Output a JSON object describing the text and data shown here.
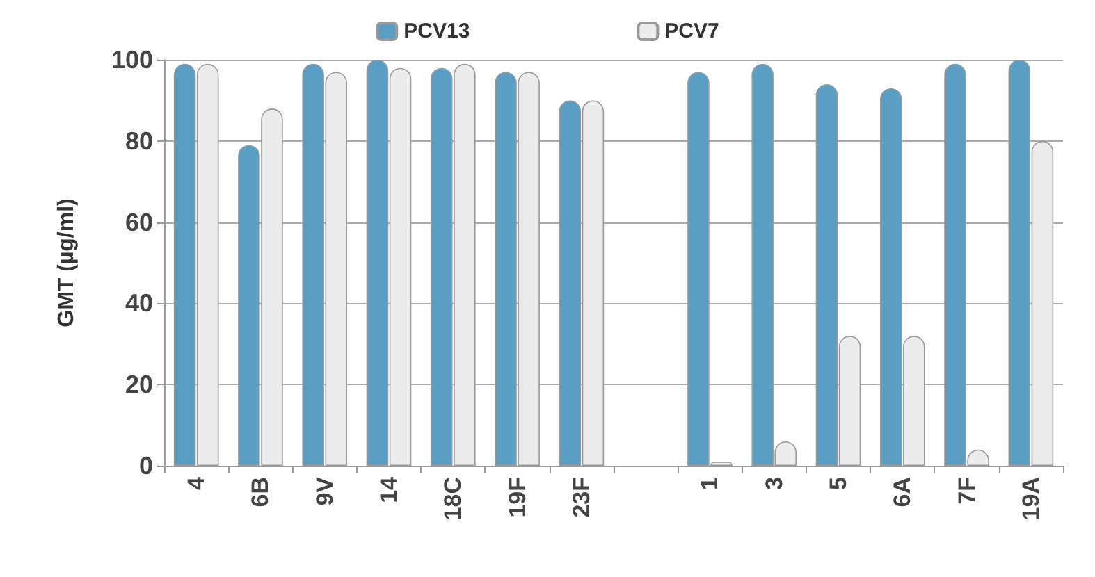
{
  "chart_data": {
    "type": "bar",
    "ylabel": "GMT (µg/ml)",
    "categories": [
      "4",
      "6B",
      "9V",
      "14",
      "18C",
      "19F",
      "23F",
      null,
      "1",
      "3",
      "5",
      "6A",
      "7F",
      "19A"
    ],
    "series": [
      {
        "name": "PCV13",
        "color": "#5b9ec4",
        "values": [
          99,
          79,
          99,
          100,
          98,
          97,
          90,
          null,
          97,
          99,
          94,
          93,
          99,
          100
        ]
      },
      {
        "name": "PCV7",
        "color": "#ececec",
        "values": [
          99,
          88,
          97,
          98,
          99,
          97,
          90,
          null,
          1,
          6,
          32,
          32,
          4,
          80
        ]
      }
    ],
    "ylim": [
      0,
      100
    ],
    "yticks": [
      0,
      20,
      40,
      60,
      80,
      100
    ],
    "grid": "y",
    "legend": "top"
  }
}
